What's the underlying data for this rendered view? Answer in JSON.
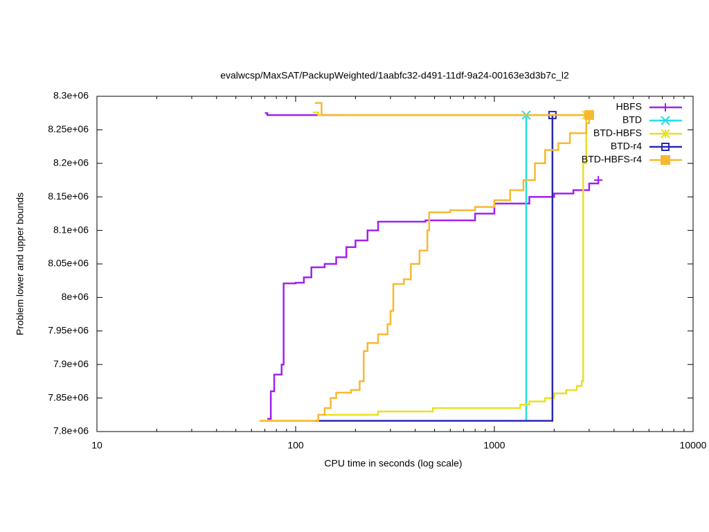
{
  "chart_data": {
    "type": "line",
    "step": true,
    "title": "evalwcsp/MaxSAT/PackupWeighted/1aabfc32-d491-11df-9a24-00163e3d3b7c_l2",
    "x_label": "CPU time in seconds (log scale)",
    "y_label": "Problem lower and upper bounds",
    "xscale": "log",
    "xlim": [
      10,
      10000
    ],
    "xticks": [
      10,
      100,
      1000,
      10000
    ],
    "ylim": [
      7800000,
      8300000
    ],
    "yticks": [
      {
        "value": 7800000,
        "label": "7.8e+06"
      },
      {
        "value": 7850000,
        "label": "7.85e+06"
      },
      {
        "value": 7900000,
        "label": "7.9e+06"
      },
      {
        "value": 7950000,
        "label": "7.95e+06"
      },
      {
        "value": 8000000,
        "label": "8e+06"
      },
      {
        "value": 8050000,
        "label": "8.05e+06"
      },
      {
        "value": 8100000,
        "label": "8.1e+06"
      },
      {
        "value": 8150000,
        "label": "8.15e+06"
      },
      {
        "value": 8200000,
        "label": "8.2e+06"
      },
      {
        "value": 8250000,
        "label": "8.25e+06"
      },
      {
        "value": 8300000,
        "label": "8.3e+06"
      }
    ],
    "legend": "top-right",
    "series": [
      {
        "name": "HBFS",
        "color": "#a020f0",
        "marker": "plus",
        "x": [
          70,
          72,
          175,
          null,
          72,
          75,
          78,
          85,
          87,
          100,
          110,
          120,
          140,
          160,
          180,
          200,
          230,
          260,
          450,
          800,
          1000,
          1500,
          2000,
          2500,
          3000,
          3336
        ],
        "values": [
          8275000,
          8272000,
          8272000,
          null,
          7819000,
          7860000,
          7885000,
          7900000,
          8021000,
          8022000,
          8030000,
          8045000,
          8050000,
          8060000,
          8075000,
          8085000,
          8100000,
          8113000,
          8115000,
          8125000,
          8140000,
          8150000,
          8155000,
          8160000,
          8170000,
          8175000
        ]
      },
      {
        "name": "BTD",
        "color": "#20e0e8",
        "marker": "x",
        "x": [
          1330,
          1446,
          1446
        ],
        "values": [
          8272000,
          7816000,
          8272000
        ]
      },
      {
        "name": "BTD-HBFS",
        "color": "#e8e020",
        "marker": "star",
        "x": [
          122,
          130,
          3000,
          null,
          66,
          125,
          130,
          250,
          260,
          480,
          490,
          1300,
          1350,
          1500,
          1800,
          2000,
          2300,
          2600,
          2750,
          2800,
          2900,
          2900
        ],
        "values": [
          8276000,
          8272000,
          8272000,
          null,
          7816000,
          7816000,
          7825000,
          7825000,
          7830000,
          7830000,
          7835000,
          7835000,
          7840000,
          7845000,
          7850000,
          7857000,
          7862000,
          7868000,
          7875000,
          8200000,
          8260000,
          8272000
        ]
      },
      {
        "name": "BTD-r4",
        "color": "#2828b0",
        "marker": "square",
        "x": [
          125,
          1960,
          1960
        ],
        "values": [
          7816000,
          7816000,
          8272000
        ]
      },
      {
        "name": "BTD-HBFS-r4",
        "color": "#f8b830",
        "marker": "filled-square",
        "x": [
          125,
          135,
          3000,
          null,
          66,
          125,
          130,
          140,
          150,
          160,
          190,
          210,
          220,
          230,
          260,
          290,
          300,
          310,
          350,
          380,
          420,
          460,
          470,
          600,
          800,
          1000,
          1200,
          1400,
          1600,
          1800,
          2100,
          2400,
          2900,
          3000
        ],
        "values": [
          8290000,
          8272000,
          8272000,
          null,
          7816000,
          7816000,
          7825000,
          7835000,
          7850000,
          7858000,
          7862000,
          7875000,
          7920000,
          7932000,
          7945000,
          7960000,
          7980000,
          8020000,
          8027000,
          8050000,
          8070000,
          8100000,
          8127000,
          8130000,
          8135000,
          8145000,
          8160000,
          8175000,
          8200000,
          8220000,
          8230000,
          8245000,
          8260000,
          8272000
        ]
      }
    ]
  }
}
